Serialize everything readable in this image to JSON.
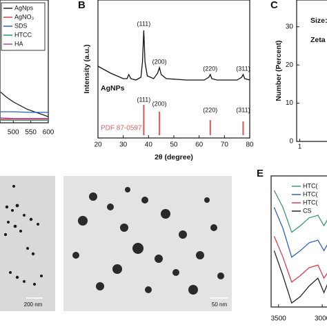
{
  "chart_data": [
    {
      "type": "line",
      "xlim": [
        462,
        600
      ],
      "xticks": [
        500,
        550,
        600
      ],
      "ylim": [
        0,
        1
      ],
      "series": [
        {
          "name": "AgNps",
          "color": "#222222",
          "x": [
            464,
            480,
            500,
            520,
            540,
            560,
            580,
            600
          ],
          "values": [
            0.25,
            0.21,
            0.17,
            0.14,
            0.11,
            0.09,
            0.07,
            0.05
          ]
        },
        {
          "name": "AgNO₃",
          "color": "#e04040",
          "x": [
            464,
            500,
            550,
            600
          ],
          "values": [
            0.03,
            0.03,
            0.03,
            0.03
          ]
        },
        {
          "name": "SDS",
          "color": "#2060c0",
          "x": [
            464,
            500,
            550,
            600
          ],
          "values": [
            0.09,
            0.09,
            0.085,
            0.085
          ]
        },
        {
          "name": "HTCC",
          "color": "#20a060",
          "x": [
            464,
            500,
            550,
            600
          ],
          "values": [
            0.02,
            0.02,
            0.02,
            0.02
          ]
        },
        {
          "name": "HA",
          "color": "#b040c0",
          "x": [
            464,
            500,
            550,
            600
          ],
          "values": [
            0.04,
            0.035,
            0.035,
            0.035
          ]
        }
      ]
    },
    {
      "type": "line",
      "panel": "B",
      "xlabel": "2θ (degree)",
      "ylabel": "Intensity (a.u.)",
      "xlim": [
        20,
        80
      ],
      "xticks": [
        20,
        30,
        40,
        50,
        60,
        70,
        80
      ],
      "ylim": [
        0,
        100
      ],
      "peak_labels": [
        "(111)",
        "(200)",
        "(220)",
        "(311)"
      ],
      "series": [
        {
          "name": "AgNPs",
          "color": "#111111",
          "x": [
            20,
            25,
            30,
            31.5,
            32.2,
            33,
            35,
            37,
            37.6,
            38.1,
            38.6,
            39.5,
            42,
            43.6,
            44.3,
            45,
            47,
            55,
            62,
            63.8,
            64.4,
            65,
            67,
            75,
            76.8,
            77.4,
            78,
            80
          ],
          "values": [
            52,
            47,
            43,
            43,
            46,
            43,
            42,
            44,
            55,
            78,
            55,
            45,
            43,
            47,
            51,
            46,
            43,
            42,
            42,
            44,
            46,
            43,
            42,
            42,
            44,
            46,
            43,
            42
          ]
        }
      ],
      "reference": {
        "name": "PDF 87-0597",
        "color": "#e06060",
        "x": [
          38.1,
          44.3,
          64.4,
          77.4
        ],
        "values": [
          24,
          19,
          13,
          12
        ]
      }
    },
    {
      "type": "bar",
      "panel": "C",
      "ylabel": "Number (Percent)",
      "ylim": [
        0,
        37
      ],
      "yticks": [
        0,
        10,
        20,
        30
      ],
      "xlim": [
        0.8,
        3
      ],
      "xticks": [
        1
      ],
      "annotations": [
        "Size:",
        "Zeta p"
      ]
    },
    {
      "type": "line",
      "panel": "E",
      "xlim": [
        3585,
        2898
      ],
      "xticks": [
        3500,
        3000
      ],
      "ylim": [
        0,
        100
      ],
      "series": [
        {
          "name": "HTC(",
          "color": "#3a9a6a",
          "x": [
            3550,
            3450,
            3350,
            3250,
            3150,
            3050,
            2980,
            2930,
            2900
          ],
          "values": [
            89,
            76,
            57,
            62,
            68,
            70,
            62,
            68,
            70
          ]
        },
        {
          "name": "HTC(",
          "color": "#3060c0",
          "x": [
            3550,
            3450,
            3350,
            3250,
            3150,
            3050,
            2980,
            2930,
            2900
          ],
          "values": [
            76,
            60,
            38,
            43,
            49,
            51,
            43,
            49,
            51
          ]
        },
        {
          "name": "HTC(",
          "color": "#d04050",
          "x": [
            3550,
            3450,
            3350,
            3250,
            3150,
            3050,
            2980,
            2930,
            2900
          ],
          "values": [
            54,
            38,
            19,
            24,
            30,
            32,
            22,
            27,
            30
          ]
        },
        {
          "name": "CS",
          "color": "#222222",
          "x": [
            3550,
            3450,
            3350,
            3250,
            3150,
            3050,
            2980,
            2930,
            2900
          ],
          "values": [
            43,
            24,
            3,
            8,
            16,
            22,
            11,
            19,
            22
          ]
        }
      ]
    }
  ],
  "images": [
    {
      "scale_bar": "200 nm"
    },
    {
      "scale_bar": "50 nm"
    }
  ]
}
